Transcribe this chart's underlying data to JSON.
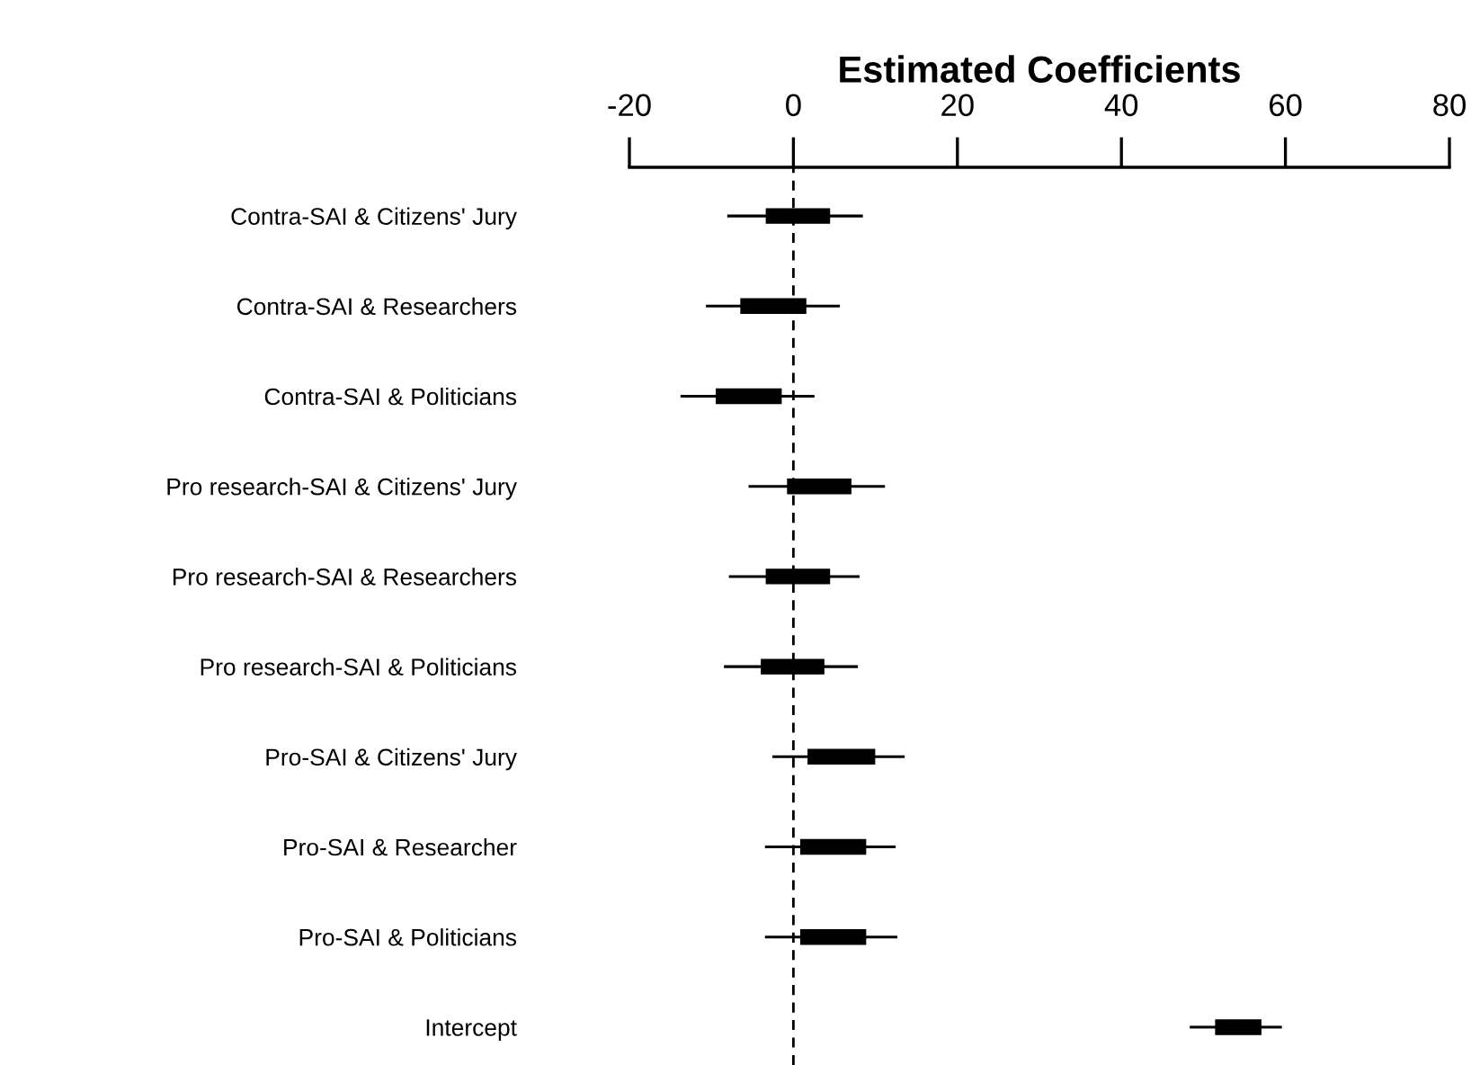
{
  "chart_data": {
    "type": "box",
    "orientation": "horizontal",
    "title": "Estimated Coefficients",
    "categories": [
      "Contra-SAI & Citizens' Jury",
      "Contra-SAI & Researchers",
      "Contra-SAI & Politicians",
      "Pro research-SAI & Citizens' Jury",
      "Pro research-SAI & Researchers",
      "Pro research-SAI & Politicians",
      "Pro-SAI & Citizens' Jury",
      "Pro-SAI & Researcher",
      "Pro-SAI & Politicians",
      "Intercept"
    ],
    "boxes": [
      {
        "low": -7.9,
        "q1": -3.3,
        "median": 0.2,
        "q3": 4.4,
        "high": 8.3
      },
      {
        "low": -10.5,
        "q1": -6.4,
        "median": -2.8,
        "q3": 1.5,
        "high": 5.5
      },
      {
        "low": -13.6,
        "q1": -9.4,
        "median": -5.7,
        "q3": -1.5,
        "high": 2.4
      },
      {
        "low": -5.3,
        "q1": -0.7,
        "median": 2.9,
        "q3": 7.0,
        "high": 11.0
      },
      {
        "low": -7.7,
        "q1": -3.3,
        "median": 0.2,
        "q3": 4.4,
        "high": 7.9
      },
      {
        "low": -8.3,
        "q1": -3.9,
        "median": -0.4,
        "q3": 3.7,
        "high": 7.7
      },
      {
        "low": -2.4,
        "q1": 1.8,
        "median": 5.5,
        "q3": 9.9,
        "high": 13.4
      },
      {
        "low": -3.3,
        "q1": 0.9,
        "median": 4.4,
        "q3": 8.8,
        "high": 12.3
      },
      {
        "low": -3.3,
        "q1": 0.9,
        "median": 4.4,
        "q3": 8.8,
        "high": 12.5
      },
      {
        "low": 48.5,
        "q1": 51.5,
        "median": 53.9,
        "q3": 57.0,
        "high": 59.4
      }
    ],
    "color": "#000000",
    "xlim": [
      -20,
      80
    ],
    "xticks": [
      -20,
      0,
      20,
      40,
      60,
      80
    ],
    "ref_lines": [
      {
        "axis": "x",
        "value": 0,
        "line_style": "dashed",
        "color": "#000000"
      }
    ],
    "grid": false
  }
}
